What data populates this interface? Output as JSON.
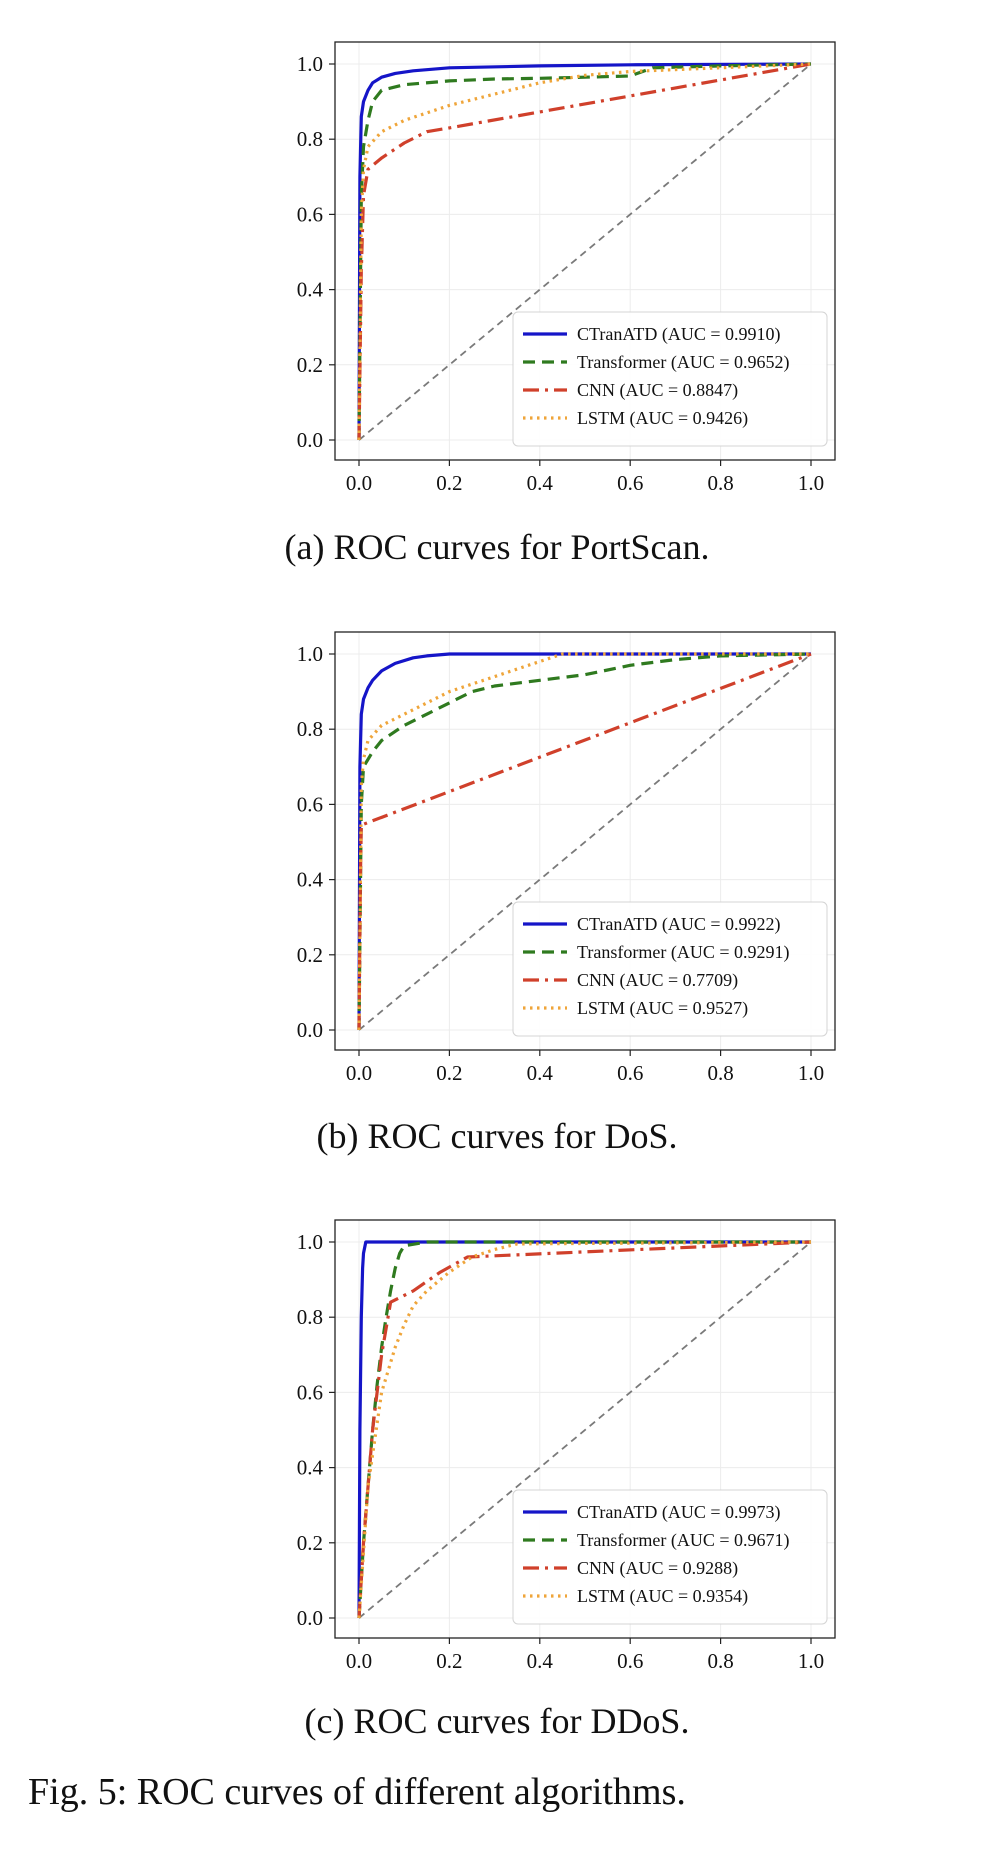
{
  "figure_caption": "Fig. 5: ROC curves of different algorithms.",
  "styles": {
    "CTranATD": {
      "color": "#1515c8",
      "dash": "",
      "width": 3.2
    },
    "Transformer": {
      "color": "#2f7a1f",
      "dash": "12 7",
      "width": 3.2
    },
    "CNN": {
      "color": "#d0402b",
      "dash": "16 6 3 6",
      "width": 3.2
    },
    "LSTM": {
      "color": "#efa53a",
      "dash": "2.5 4.5",
      "width": 3.2
    },
    "diagonal": {
      "color": "#7a7a7a",
      "dash": "7 5",
      "width": 1.8
    }
  },
  "chart_data": [
    {
      "type": "line",
      "caption": "(a) ROC curves for PortScan.",
      "xlim": [
        0,
        1
      ],
      "ylim": [
        0,
        1
      ],
      "xticks": [
        "0.0",
        "0.2",
        "0.4",
        "0.6",
        "0.8",
        "1.0"
      ],
      "yticks": [
        "0.0",
        "0.2",
        "0.4",
        "0.6",
        "0.8",
        "1.0"
      ],
      "grid": true,
      "legend_position": "lower-right",
      "series": [
        {
          "name": "CTranATD (AUC = 0.9910)",
          "key": "CTranATD",
          "x": [
            0,
            0.002,
            0.005,
            0.01,
            0.02,
            0.03,
            0.05,
            0.08,
            0.12,
            0.2,
            0.4,
            0.6,
            1.0
          ],
          "y": [
            0,
            0.7,
            0.86,
            0.9,
            0.93,
            0.95,
            0.965,
            0.975,
            0.982,
            0.99,
            0.995,
            0.998,
            1.0
          ]
        },
        {
          "name": "Transformer (AUC = 0.9652)",
          "key": "Transformer",
          "x": [
            0,
            0.005,
            0.01,
            0.02,
            0.03,
            0.05,
            0.1,
            0.2,
            0.3,
            0.4,
            0.5,
            0.6,
            0.65,
            0.8,
            1.0
          ],
          "y": [
            0,
            0.65,
            0.78,
            0.85,
            0.9,
            0.93,
            0.945,
            0.955,
            0.96,
            0.962,
            0.965,
            0.968,
            0.99,
            0.995,
            1.0
          ]
        },
        {
          "name": "CNN (AUC = 0.8847)",
          "key": "CNN",
          "x": [
            0,
            0.005,
            0.01,
            0.02,
            0.05,
            0.1,
            0.15,
            0.2,
            1.0
          ],
          "y": [
            0,
            0.45,
            0.65,
            0.72,
            0.75,
            0.79,
            0.82,
            0.83,
            1.0
          ]
        },
        {
          "name": "LSTM (AUC = 0.9426)",
          "key": "LSTM",
          "x": [
            0,
            0.005,
            0.01,
            0.02,
            0.05,
            0.1,
            0.15,
            0.2,
            0.3,
            0.4,
            0.5,
            0.6,
            1.0
          ],
          "y": [
            0,
            0.6,
            0.72,
            0.78,
            0.82,
            0.85,
            0.87,
            0.89,
            0.92,
            0.95,
            0.97,
            0.98,
            1.0
          ]
        }
      ]
    },
    {
      "type": "line",
      "caption": "(b) ROC curves for DoS.",
      "xlim": [
        0,
        1
      ],
      "ylim": [
        0,
        1
      ],
      "xticks": [
        "0.0",
        "0.2",
        "0.4",
        "0.6",
        "0.8",
        "1.0"
      ],
      "yticks": [
        "0.0",
        "0.2",
        "0.4",
        "0.6",
        "0.8",
        "1.0"
      ],
      "grid": true,
      "legend_position": "lower-right",
      "series": [
        {
          "name": "CTranATD (AUC = 0.9922)",
          "key": "CTranATD",
          "x": [
            0,
            0.002,
            0.005,
            0.01,
            0.02,
            0.03,
            0.05,
            0.08,
            0.12,
            0.15,
            0.2,
            1.0
          ],
          "y": [
            0,
            0.7,
            0.84,
            0.88,
            0.91,
            0.93,
            0.955,
            0.975,
            0.99,
            0.995,
            1.0,
            1.0
          ]
        },
        {
          "name": "Transformer (AUC = 0.9291)",
          "key": "Transformer",
          "x": [
            0,
            0.005,
            0.01,
            0.03,
            0.05,
            0.1,
            0.15,
            0.2,
            0.25,
            0.3,
            0.4,
            0.5,
            0.6,
            0.7,
            0.8,
            1.0
          ],
          "y": [
            0,
            0.6,
            0.7,
            0.74,
            0.77,
            0.81,
            0.84,
            0.87,
            0.9,
            0.915,
            0.93,
            0.945,
            0.97,
            0.985,
            0.995,
            1.0
          ]
        },
        {
          "name": "CNN (AUC = 0.7709)",
          "key": "CNN",
          "x": [
            0,
            0.003,
            0.005,
            1.0
          ],
          "y": [
            0,
            0.4,
            0.545,
            1.0
          ]
        },
        {
          "name": "LSTM (AUC = 0.9527)",
          "key": "LSTM",
          "x": [
            0,
            0.005,
            0.01,
            0.02,
            0.05,
            0.1,
            0.15,
            0.2,
            0.25,
            0.3,
            0.35,
            0.4,
            0.45,
            1.0
          ],
          "y": [
            0,
            0.65,
            0.72,
            0.77,
            0.81,
            0.84,
            0.87,
            0.9,
            0.92,
            0.94,
            0.96,
            0.98,
            1.0,
            1.0
          ]
        }
      ]
    },
    {
      "type": "line",
      "caption": "(c) ROC curves for DDoS.",
      "xlim": [
        0,
        1
      ],
      "ylim": [
        0,
        1
      ],
      "xticks": [
        "0.0",
        "0.2",
        "0.4",
        "0.6",
        "0.8",
        "1.0"
      ],
      "yticks": [
        "0.0",
        "0.2",
        "0.4",
        "0.6",
        "0.8",
        "1.0"
      ],
      "grid": true,
      "legend_position": "lower-right",
      "series": [
        {
          "name": "CTranATD (AUC = 0.9973)",
          "key": "CTranATD",
          "x": [
            0,
            0.002,
            0.005,
            0.008,
            0.01,
            0.015,
            1.0
          ],
          "y": [
            0,
            0.5,
            0.8,
            0.93,
            0.97,
            1.0,
            1.0
          ]
        },
        {
          "name": "Transformer (AUC = 0.9671)",
          "key": "Transformer",
          "x": [
            0,
            0.01,
            0.02,
            0.03,
            0.04,
            0.05,
            0.06,
            0.07,
            0.08,
            0.09,
            0.1,
            0.15,
            1.0
          ],
          "y": [
            0,
            0.2,
            0.35,
            0.5,
            0.62,
            0.72,
            0.8,
            0.87,
            0.93,
            0.97,
            0.99,
            1.0,
            1.0
          ]
        },
        {
          "name": "CNN (AUC = 0.9288)",
          "key": "CNN",
          "x": [
            0,
            0.01,
            0.03,
            0.05,
            0.07,
            0.12,
            0.18,
            0.24,
            1.0
          ],
          "y": [
            0,
            0.2,
            0.5,
            0.7,
            0.84,
            0.87,
            0.92,
            0.96,
            1.0
          ]
        },
        {
          "name": "LSTM (AUC = 0.9354)",
          "key": "LSTM",
          "x": [
            0,
            0.02,
            0.05,
            0.08,
            0.1,
            0.12,
            0.15,
            0.2,
            0.25,
            0.3,
            0.35,
            1.0
          ],
          "y": [
            0,
            0.35,
            0.6,
            0.72,
            0.78,
            0.83,
            0.87,
            0.92,
            0.96,
            0.98,
            0.995,
            1.0
          ]
        }
      ]
    }
  ]
}
